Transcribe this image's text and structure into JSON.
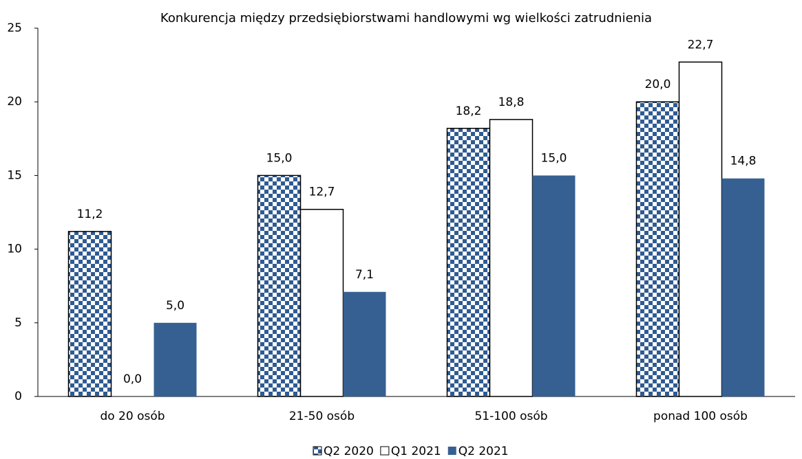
{
  "chart_data": {
    "type": "bar",
    "title": "Konkurencja między przedsiębiorstwami handlowymi wg wielkości zatrudnienia",
    "categories": [
      "do 20 osób",
      "21-50 osób",
      "51-100 osób",
      "ponad 100 osób"
    ],
    "series": [
      {
        "name": "Q2 2020",
        "color": "#2f5b93",
        "pattern": "checkerboard",
        "values": [
          11.2,
          15.0,
          18.2,
          20.0
        ],
        "value_labels": [
          "11,2",
          "15,0",
          "18,2",
          "20,0"
        ]
      },
      {
        "name": "Q1 2021",
        "color": "#ffffff",
        "values": [
          0.0,
          12.7,
          18.8,
          22.7
        ],
        "value_labels": [
          "0,0",
          "12,7",
          "18,8",
          "22,7"
        ]
      },
      {
        "name": "Q2 2021",
        "color": "#376092",
        "values": [
          5.0,
          7.1,
          15.0,
          14.8
        ],
        "value_labels": [
          "5,0",
          "7,1",
          "15,0",
          "14,8"
        ]
      }
    ],
    "ylim": [
      0,
      25
    ],
    "yticks": [
      0,
      5,
      10,
      15,
      20,
      25
    ],
    "grid": false,
    "legend": "bottom"
  }
}
